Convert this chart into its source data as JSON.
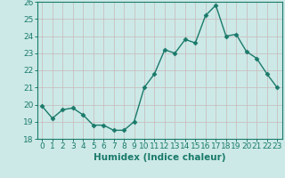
{
  "x": [
    0,
    1,
    2,
    3,
    4,
    5,
    6,
    7,
    8,
    9,
    10,
    11,
    12,
    13,
    14,
    15,
    16,
    17,
    18,
    19,
    20,
    21,
    22,
    23
  ],
  "y": [
    19.9,
    19.2,
    19.7,
    19.8,
    19.4,
    18.8,
    18.8,
    18.5,
    18.5,
    19.0,
    21.0,
    21.8,
    23.2,
    23.0,
    23.8,
    23.6,
    25.2,
    25.8,
    24.0,
    24.1,
    23.1,
    22.7,
    21.8,
    21.0
  ],
  "line_color": "#1a7a6a",
  "marker": "D",
  "marker_size": 2.5,
  "bg_color": "#cce9e7",
  "grid_color": "#b8d8d5",
  "xlabel": "Humidex (Indice chaleur)",
  "ylim": [
    18,
    26
  ],
  "xlim": [
    -0.5,
    23.5
  ],
  "yticks": [
    18,
    19,
    20,
    21,
    22,
    23,
    24,
    25,
    26
  ],
  "xticks": [
    0,
    1,
    2,
    3,
    4,
    5,
    6,
    7,
    8,
    9,
    10,
    11,
    12,
    13,
    14,
    15,
    16,
    17,
    18,
    19,
    20,
    21,
    22,
    23
  ],
  "xlabel_fontsize": 7.5,
  "tick_fontsize": 6.5,
  "line_width": 1.0,
  "spine_color": "#1a7a6a"
}
